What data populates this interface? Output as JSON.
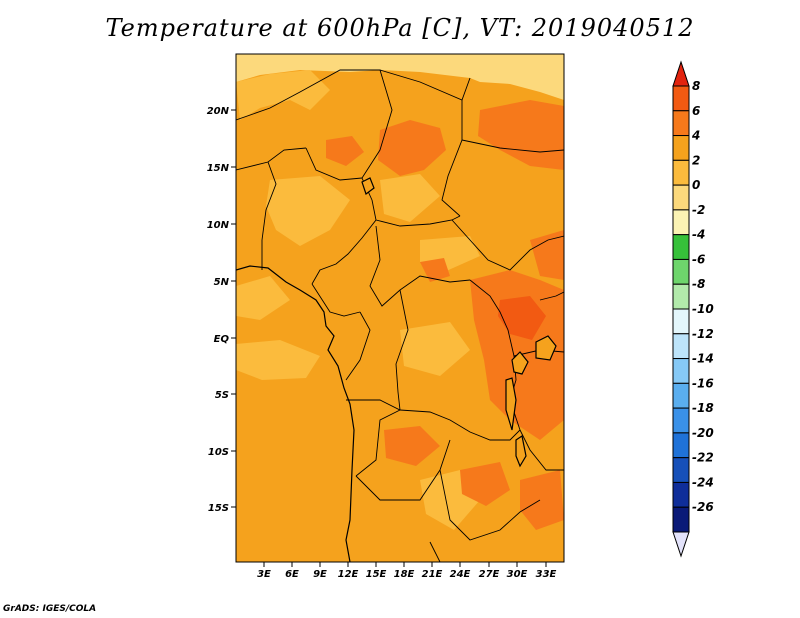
{
  "title": "Temperature at 600hPa [C], VT: 2019040512",
  "credit": "GrADS: IGES/COLA",
  "map": {
    "lon_labels": [
      "3E",
      "6E",
      "9E",
      "12E",
      "15E",
      "18E",
      "21E",
      "24E",
      "27E",
      "30E",
      "33E"
    ],
    "lat_labels": [
      "20N",
      "15N",
      "10N",
      "5N",
      "EQ",
      "5S",
      "10S",
      "15S"
    ],
    "background_fill": "#f5a21d"
  },
  "colorbar": {
    "labels": [
      "8",
      "6",
      "4",
      "2",
      "0",
      "-2",
      "-4",
      "-6",
      "-8",
      "-10",
      "-12",
      "-14",
      "-16",
      "-18",
      "-20",
      "-22",
      "-24",
      "-26"
    ],
    "colors": [
      "#e2230e",
      "#f25a12",
      "#f6791b",
      "#f5a21d",
      "#fbbb3d",
      "#fcd97c",
      "#fbf3b4",
      "#36c13a",
      "#6ed56c",
      "#b2eaab",
      "#e4f7fc",
      "#bde4fa",
      "#86c9f6",
      "#5aaeef",
      "#3a91e8",
      "#1f72d8",
      "#1650b9",
      "#0f2e9a",
      "#0a1a78",
      "#e3e3fb"
    ]
  },
  "regions": [
    {
      "fill": "#fcd97c"
    },
    {
      "fill": "#fbbb3d"
    },
    {
      "fill": "#f6791b"
    },
    {
      "fill": "#f25a12"
    }
  ]
}
